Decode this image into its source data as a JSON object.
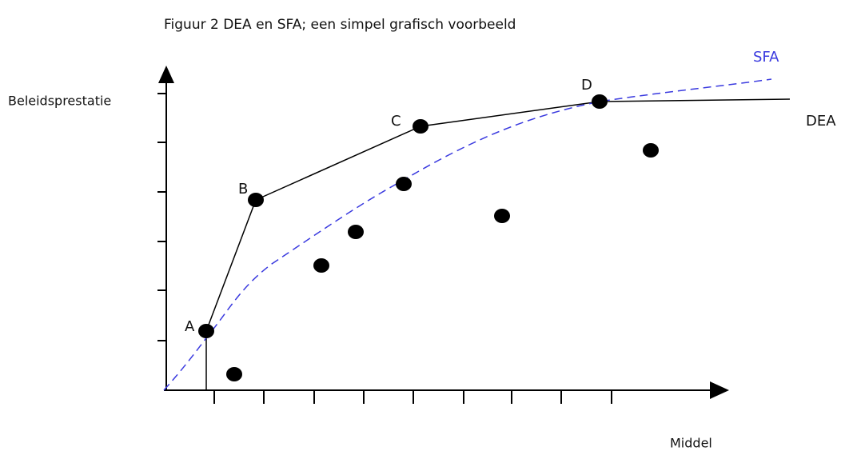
{
  "title": "Figuur 2 DEA en SFA; een simpel grafisch voorbeeld",
  "y_axis_label": "Beleidsprestatie",
  "x_axis_label": "Middel",
  "curves": {
    "dea": "DEA",
    "sfa": "SFA"
  },
  "points": {
    "a": "A",
    "b": "B",
    "c": "C",
    "d": "D"
  }
}
